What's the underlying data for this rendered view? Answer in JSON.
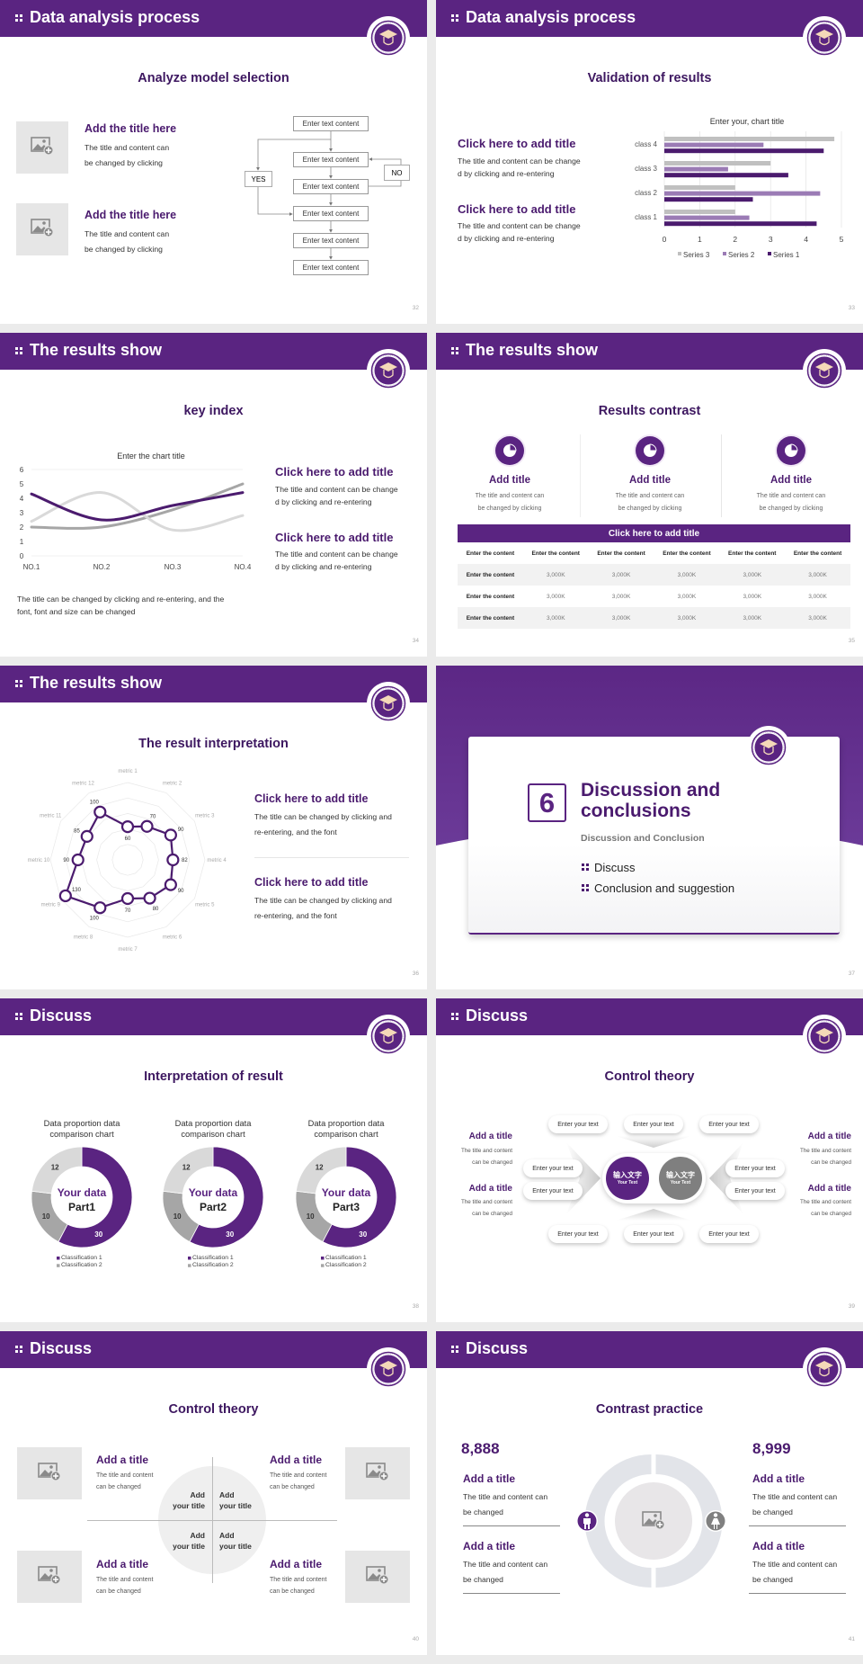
{
  "theme": {
    "primary": "#5a2481",
    "title_text": "#3d1760",
    "gray": "#a6a6a6",
    "light_gray": "#d9d9d9"
  },
  "slides": [
    {
      "page": "32",
      "header": "Data analysis process",
      "subtitle": "Analyze model selection",
      "items": [
        {
          "title": "Add the title here",
          "lines": [
            "The title and content can",
            "be changed by clicking"
          ]
        },
        {
          "title": "Add the title here",
          "lines": [
            "The title and content can",
            "be changed by clicking"
          ]
        }
      ],
      "flow": {
        "boxes": [
          "Enter text content",
          "Enter text content",
          "Enter text content",
          "Enter text content",
          "Enter text content",
          "Enter text content"
        ],
        "yes": "YES",
        "no": "NO"
      }
    },
    {
      "page": "33",
      "header": "Data analysis process",
      "subtitle": "Validation of results",
      "items": [
        {
          "title": "Click here to add title",
          "lines": [
            "The title and content can be change",
            "d by clicking and re-entering"
          ]
        },
        {
          "title": "Click here to add title",
          "lines": [
            "The title and content can be change",
            "d by clicking and re-entering"
          ]
        }
      ]
    },
    {
      "page": "34",
      "header": "The results show",
      "subtitle": "key index",
      "note": [
        "The title can be changed by clicking and re-entering, and the",
        "font, font and size can be changed"
      ],
      "items": [
        {
          "title": "Click here to add title",
          "lines": [
            "The title and content can be change",
            "d by clicking and re-entering"
          ]
        },
        {
          "title": "Click here to add title",
          "lines": [
            "The title and content can be change",
            "d by clicking and re-entering"
          ]
        }
      ]
    },
    {
      "page": "35",
      "header": "The results show",
      "subtitle": "Results contrast",
      "cards": [
        {
          "icon": "pie-chart-icon",
          "title": "Add title",
          "lines": [
            "The title and content can",
            "be changed by clicking"
          ]
        },
        {
          "icon": "pie-chart-icon",
          "title": "Add title",
          "lines": [
            "The title and content can",
            "be changed by clicking"
          ]
        },
        {
          "icon": "pie-chart-icon",
          "title": "Add title",
          "lines": [
            "The title and content can",
            "be changed by clicking"
          ]
        }
      ],
      "table": {
        "title": "Click here to add title",
        "header": [
          "Enter the content",
          "Enter the content",
          "Enter the content",
          "Enter the content",
          "Enter the content",
          "Enter the content"
        ],
        "rows": [
          [
            "Enter the content",
            "3,000K",
            "3,000K",
            "3,000K",
            "3,000K",
            "3,000K"
          ],
          [
            "Enter the content",
            "3,000K",
            "3,000K",
            "3,000K",
            "3,000K",
            "3,000K"
          ],
          [
            "Enter the content",
            "3,000K",
            "3,000K",
            "3,000K",
            "3,000K",
            "3,000K"
          ]
        ]
      }
    },
    {
      "page": "36",
      "header": "The results show",
      "subtitle": "The result interpretation",
      "items": [
        {
          "title": "Click here to add  title",
          "lines": [
            "The title can be changed by clicking and",
            "re-entering, and the font"
          ]
        },
        {
          "title": "Click here to add  title",
          "lines": [
            "The title can be changed by clicking and",
            "re-entering, and the font"
          ]
        }
      ]
    },
    {
      "page": "37",
      "section_number": "6",
      "title_lines": [
        "Discussion and",
        "conclusions"
      ],
      "subtitle": "Discussion and Conclusion",
      "bullets": [
        "Discuss",
        "Conclusion and suggestion"
      ]
    },
    {
      "page": "38",
      "header": "Discuss",
      "subtitle": "Interpretation of result"
    },
    {
      "page": "39",
      "header": "Discuss",
      "subtitle": "Control theory",
      "side": [
        {
          "title": "Add a title",
          "lines": [
            "The title and content",
            "can be changed"
          ]
        },
        {
          "title": "Add a title",
          "lines": [
            "The title and content",
            "can be changed"
          ]
        },
        {
          "title": "Add a title",
          "lines": [
            "The title and content",
            "can be changed"
          ]
        },
        {
          "title": "Add a title",
          "lines": [
            "The title and content",
            "can be changed"
          ]
        }
      ],
      "pills": [
        "Enter your text",
        "Enter your text",
        "Enter your text",
        "Enter your text",
        "Enter your text",
        "Enter your text",
        "Enter your text",
        "Enter your text",
        "Enter your text",
        "Enter your text"
      ],
      "centers": [
        {
          "cn": "输入文字",
          "en": "Your Text"
        },
        {
          "cn": "输入文字",
          "en": "Your Text"
        }
      ]
    },
    {
      "page": "40",
      "header": "Discuss",
      "subtitle": "Control theory",
      "items": [
        {
          "title": "Add a title",
          "lines": [
            "The title and content",
            "can be changed"
          ]
        },
        {
          "title": "Add a title",
          "lines": [
            "The title and content",
            "can be changed"
          ]
        },
        {
          "title": "Add a title",
          "lines": [
            "The title and content",
            "can be changed"
          ]
        },
        {
          "title": "Add a title",
          "lines": [
            "The title and content",
            "can be changed"
          ]
        }
      ],
      "quadrants": [
        [
          "Add",
          "your title"
        ],
        [
          "Add",
          "your title"
        ],
        [
          "Add",
          "your title"
        ],
        [
          "Add",
          "your title"
        ]
      ]
    },
    {
      "page": "41",
      "header": "Discuss",
      "subtitle": "Contrast practice",
      "stats": [
        {
          "value": "8,888",
          "icon": "male-icon",
          "items": [
            {
              "title": "Add a title",
              "lines": [
                "The title and content can",
                "be changed"
              ]
            },
            {
              "title": "Add a title",
              "lines": [
                "The title and content can",
                "be changed"
              ]
            }
          ]
        },
        {
          "value": "8,999",
          "icon": "female-icon",
          "items": [
            {
              "title": "Add a title",
              "lines": [
                "The title and content can",
                "be changed"
              ]
            },
            {
              "title": "Add a title",
              "lines": [
                "The title and content can",
                "be changed"
              ]
            }
          ]
        }
      ]
    }
  ],
  "chart_data": [
    {
      "type": "bar",
      "orientation": "horizontal",
      "title": "Enter your, chart title",
      "categories": [
        "class 1",
        "class 2",
        "class 3",
        "class 4"
      ],
      "series": [
        {
          "name": "Series 1",
          "values": [
            4.3,
            2.5,
            3.5,
            4.5
          ],
          "color": "#4b1b6e"
        },
        {
          "name": "Series 2",
          "values": [
            2.4,
            4.4,
            1.8,
            2.8
          ],
          "color": "#9b7bb5"
        },
        {
          "name": "Series 3",
          "values": [
            2.0,
            2.0,
            3.0,
            4.8
          ],
          "color": "#c0c0c0"
        }
      ],
      "xlim": [
        0,
        5
      ],
      "xticks": [
        "0",
        "1",
        "2",
        "3",
        "4",
        "5"
      ],
      "grid": true,
      "legend": "bottom",
      "legend_order": [
        "Series 3",
        "Series 2",
        "Series 1"
      ]
    },
    {
      "type": "line",
      "smooth": true,
      "title": "Enter the chart title",
      "categories": [
        "NO.1",
        "NO.2",
        "NO.3",
        "NO.4"
      ],
      "series": [
        {
          "values": [
            4.3,
            2.5,
            3.5,
            4.4
          ],
          "color": "#4b1b6e"
        },
        {
          "values": [
            2.4,
            4.4,
            1.8,
            2.8
          ],
          "color": "#d9d9d9"
        },
        {
          "values": [
            2.0,
            2.0,
            3.2,
            5.0
          ],
          "color": "#a6a6a6"
        }
      ],
      "ylim": [
        0,
        6
      ],
      "yticks": [
        "0",
        "1",
        "2",
        "3",
        "4",
        "5",
        "6"
      ]
    },
    {
      "type": "radar",
      "categories": [
        "metric 1",
        "metric 2",
        "metric 3",
        "metric 4",
        "metric 5",
        "metric 6",
        "metric 7",
        "metric 8",
        "metric 9",
        "metric 10",
        "metric 11",
        "metric 12"
      ],
      "values": [
        60,
        70,
        90,
        82,
        90,
        80,
        70,
        100,
        130,
        90,
        85,
        100
      ],
      "rlim": [
        0,
        140
      ],
      "color": "#4b1b6e"
    },
    {
      "type": "pie",
      "donut": true,
      "title": "Data proportion data comparison chart",
      "center_label": [
        "Your data",
        "Part1"
      ],
      "values": [
        30,
        10,
        12
      ],
      "colors": [
        "#5a2481",
        "#a6a6a6",
        "#d9d9d9"
      ],
      "legend": [
        "Classification 1",
        "Classification 2"
      ]
    },
    {
      "type": "pie",
      "donut": true,
      "title": "Data proportion data comparison chart",
      "center_label": [
        "Your data",
        "Part2"
      ],
      "values": [
        30,
        10,
        12
      ],
      "colors": [
        "#5a2481",
        "#a6a6a6",
        "#d9d9d9"
      ],
      "legend": [
        "Classification 1",
        "Classification 2"
      ]
    },
    {
      "type": "pie",
      "donut": true,
      "title": "Data proportion data comparison chart",
      "center_label": [
        "Your data",
        "Part3"
      ],
      "values": [
        30,
        10,
        12
      ],
      "colors": [
        "#5a2481",
        "#a6a6a6",
        "#d9d9d9"
      ],
      "legend": [
        "Classification 1",
        "Classification 2"
      ]
    }
  ]
}
